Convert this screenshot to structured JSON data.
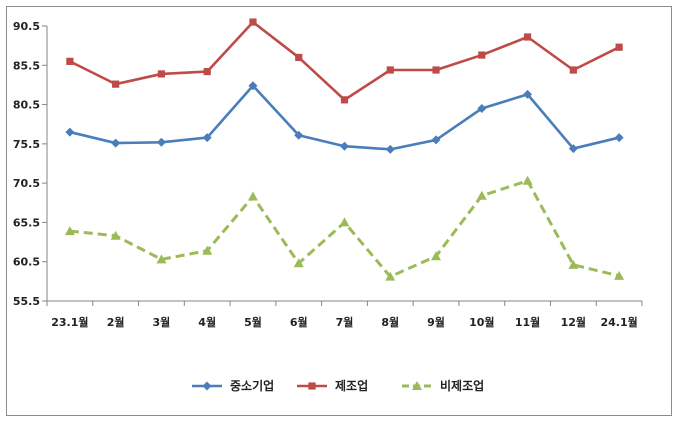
{
  "chart_data": {
    "type": "line",
    "categories": [
      "23.1월",
      "2월",
      "3월",
      "4월",
      "5월",
      "6월",
      "7월",
      "8월",
      "9월",
      "10월",
      "11월",
      "12월",
      "24.1월"
    ],
    "yticks": [
      "90.5",
      "85.5",
      "80.5",
      "75.5",
      "70.5",
      "65.5",
      "60.5",
      "55.5"
    ],
    "ylim": [
      55.5,
      90.5
    ],
    "grid": false,
    "legend_position": "bottom",
    "series": [
      {
        "name": "중소기업",
        "color": "#4a7ebb",
        "marker": "diamond",
        "dash": "solid",
        "values": [
          77.0,
          75.6,
          75.7,
          76.3,
          82.9,
          76.6,
          75.2,
          74.8,
          76.0,
          80.0,
          81.8,
          74.9,
          76.3
        ]
      },
      {
        "name": "제조업",
        "color": "#be4b48",
        "marker": "square",
        "dash": "solid",
        "values": [
          86.0,
          83.1,
          84.4,
          84.7,
          91.0,
          86.5,
          81.1,
          84.9,
          84.9,
          86.8,
          89.1,
          84.9,
          87.8
        ]
      },
      {
        "name": "비제조업",
        "color": "#9bbb59",
        "marker": "triangle",
        "dash": "dashed",
        "values": [
          64.4,
          63.8,
          60.8,
          61.9,
          68.8,
          60.3,
          65.5,
          58.6,
          61.2,
          68.9,
          70.8,
          60.1,
          58.7
        ]
      }
    ]
  }
}
